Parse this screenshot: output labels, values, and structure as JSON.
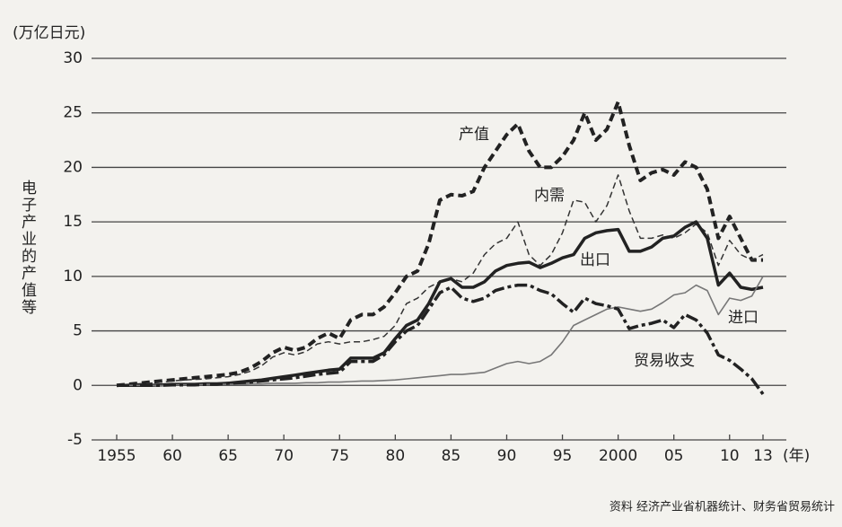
{
  "chart_data": {
    "type": "line",
    "y_unit": "(万亿日元)",
    "y_label": "电子产业的产值等",
    "x_unit": "(年)",
    "source": "资料  经济产业省机器统计、财务省贸易统计",
    "x": [
      1955,
      1956,
      1957,
      1958,
      1959,
      1960,
      1961,
      1962,
      1963,
      1964,
      1965,
      1966,
      1967,
      1968,
      1969,
      1970,
      1971,
      1972,
      1973,
      1974,
      1975,
      1976,
      1977,
      1978,
      1979,
      1980,
      1981,
      1982,
      1983,
      1984,
      1985,
      1986,
      1987,
      1988,
      1989,
      1990,
      1991,
      1992,
      1993,
      1994,
      1995,
      1996,
      1997,
      1998,
      1999,
      2000,
      2001,
      2002,
      2003,
      2004,
      2005,
      2006,
      2007,
      2008,
      2009,
      2010,
      2011,
      2012,
      2013
    ],
    "xlim": [
      1955,
      2013
    ],
    "xticks": [
      {
        "value": 1955,
        "label": "1955"
      },
      {
        "value": 1960,
        "label": "60"
      },
      {
        "value": 1965,
        "label": "65"
      },
      {
        "value": 1970,
        "label": "70"
      },
      {
        "value": 1975,
        "label": "75"
      },
      {
        "value": 1980,
        "label": "80"
      },
      {
        "value": 1985,
        "label": "85"
      },
      {
        "value": 1990,
        "label": "90"
      },
      {
        "value": 1995,
        "label": "95"
      },
      {
        "value": 2000,
        "label": "2000"
      },
      {
        "value": 2005,
        "label": "05"
      },
      {
        "value": 2010,
        "label": "10"
      },
      {
        "value": 2013,
        "label": "13"
      }
    ],
    "ylim": [
      -5,
      30
    ],
    "yticks": [
      -5,
      0,
      5,
      10,
      15,
      20,
      25,
      30
    ],
    "grid": true,
    "series": [
      {
        "name": "产值",
        "color": "#222222",
        "linestyle": "thick-dashed",
        "values": [
          0,
          0.1,
          0.2,
          0.3,
          0.4,
          0.5,
          0.6,
          0.7,
          0.8,
          0.9,
          1.0,
          1.2,
          1.6,
          2.2,
          3.0,
          3.5,
          3.2,
          3.5,
          4.3,
          4.8,
          4.3,
          6.0,
          6.5,
          6.5,
          7.2,
          8.5,
          10.0,
          10.5,
          13.0,
          17.0,
          17.5,
          17.4,
          17.8,
          20.0,
          21.5,
          23.0,
          24.0,
          21.5,
          20.0,
          20.0,
          21.0,
          22.5,
          25.0,
          22.5,
          23.5,
          26.0,
          22.0,
          18.8,
          19.5,
          19.8,
          19.3,
          20.5,
          20.0,
          18.0,
          13.5,
          15.5,
          13.5,
          11.5,
          11.5
        ]
      },
      {
        "name": "内需",
        "color": "#333333",
        "linestyle": "thin-dashed",
        "values": [
          0,
          0.1,
          0.15,
          0.2,
          0.3,
          0.4,
          0.5,
          0.55,
          0.6,
          0.7,
          0.8,
          1.0,
          1.3,
          1.8,
          2.6,
          3.0,
          2.8,
          3.1,
          3.8,
          4.0,
          3.8,
          4.0,
          4.0,
          4.2,
          4.5,
          5.5,
          7.5,
          8.0,
          9.0,
          9.5,
          9.8,
          9.5,
          10.3,
          12.0,
          13.0,
          13.5,
          15.0,
          12.0,
          11.0,
          12.0,
          14.0,
          17.0,
          16.8,
          15.0,
          16.5,
          19.3,
          16.0,
          13.5,
          13.5,
          13.8,
          13.5,
          14.0,
          14.8,
          14.0,
          11.0,
          13.3,
          12.0,
          11.5,
          12.0
        ]
      },
      {
        "name": "出口",
        "color": "#222222",
        "linestyle": "thick-solid",
        "values": [
          0,
          0,
          0,
          0,
          0.05,
          0.1,
          0.1,
          0.1,
          0.15,
          0.15,
          0.2,
          0.3,
          0.4,
          0.5,
          0.65,
          0.8,
          0.95,
          1.1,
          1.25,
          1.4,
          1.5,
          2.5,
          2.5,
          2.5,
          3.0,
          4.3,
          5.5,
          6.0,
          7.5,
          9.5,
          9.8,
          9.0,
          9.0,
          9.5,
          10.5,
          11.0,
          11.2,
          11.3,
          10.8,
          11.2,
          11.7,
          12.0,
          13.5,
          14.0,
          14.2,
          14.3,
          12.3,
          12.3,
          12.7,
          13.5,
          13.7,
          14.5,
          15.0,
          13.5,
          9.2,
          10.3,
          9.0,
          8.8,
          9.0
        ]
      },
      {
        "name": "进口",
        "color": "#777777",
        "linestyle": "thin-solid",
        "values": [
          0,
          0,
          0,
          0,
          0,
          0.05,
          0.05,
          0.05,
          0.1,
          0.1,
          0.1,
          0.1,
          0.15,
          0.15,
          0.2,
          0.2,
          0.2,
          0.25,
          0.25,
          0.3,
          0.3,
          0.35,
          0.4,
          0.4,
          0.45,
          0.5,
          0.6,
          0.7,
          0.8,
          0.9,
          1.0,
          1.0,
          1.1,
          1.2,
          1.6,
          2.0,
          2.2,
          2.0,
          2.2,
          2.8,
          4.0,
          5.5,
          6.0,
          6.5,
          7.0,
          7.2,
          7.0,
          6.8,
          7.0,
          7.6,
          8.3,
          8.5,
          9.2,
          8.7,
          6.5,
          8.0,
          7.8,
          8.2,
          10.0
        ]
      },
      {
        "name": "贸易收支",
        "color": "#222222",
        "linestyle": "thick-dashdot",
        "values": [
          0,
          0,
          0,
          0,
          0,
          0.05,
          0.05,
          0.05,
          0.1,
          0.1,
          0.2,
          0.25,
          0.3,
          0.4,
          0.5,
          0.6,
          0.7,
          0.85,
          1.0,
          1.1,
          1.2,
          2.2,
          2.2,
          2.2,
          2.8,
          4.0,
          5.0,
          5.5,
          7.0,
          8.5,
          9.0,
          8.0,
          7.7,
          8.0,
          8.7,
          9.0,
          9.2,
          9.2,
          8.7,
          8.4,
          7.5,
          6.7,
          8.0,
          7.5,
          7.3,
          7.0,
          5.2,
          5.5,
          5.7,
          6.0,
          5.3,
          6.5,
          6.0,
          4.8,
          2.8,
          2.3,
          1.5,
          0.6,
          -0.8
        ]
      }
    ]
  }
}
